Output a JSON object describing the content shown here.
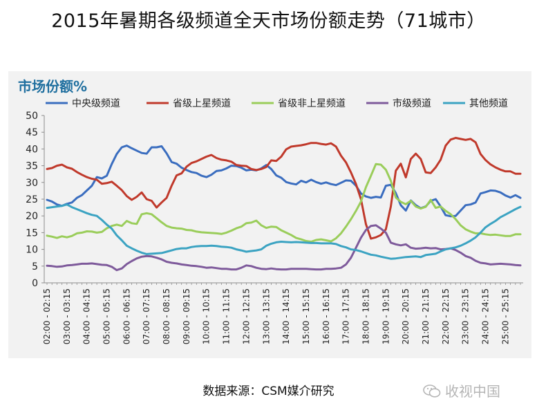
{
  "title": "2015年暑期各级频道全天市场份额走势（71城市）",
  "source": "数据来源：CSM媒介研究",
  "watermark": "收视中国",
  "chart_data": {
    "type": "line",
    "ylabel": "市场份额%",
    "ylim": [
      0,
      50
    ],
    "yticks": [
      0,
      5,
      10,
      15,
      20,
      25,
      30,
      35,
      40,
      45,
      50
    ],
    "legend_position": "top",
    "grid": false,
    "x": [
      "02:00 - 02:15",
      "02:15 - 02:30",
      "02:30 - 02:45",
      "02:45 - 03:00",
      "03:00 - 03:15",
      "03:15 - 03:30",
      "03:30 - 03:45",
      "03:45 - 04:00",
      "04:00 - 04:15",
      "04:15 - 04:30",
      "04:30 - 04:45",
      "04:45 - 05:00",
      "05:00 - 05:15",
      "05:15 - 05:30",
      "05:30 - 05:45",
      "05:45 - 06:00",
      "06:00 - 06:15",
      "06:15 - 06:30",
      "06:30 - 06:45",
      "06:45 - 07:00",
      "07:00 - 07:15",
      "07:15 - 07:30",
      "07:30 - 07:45",
      "07:45 - 08:00",
      "08:00 - 08:15",
      "08:15 - 08:30",
      "08:30 - 08:45",
      "08:45 - 09:00",
      "09:00 - 09:15",
      "09:15 - 09:30",
      "09:30 - 09:45",
      "09:45 - 10:00",
      "10:00 - 10:15",
      "10:15 - 10:30",
      "10:30 - 10:45",
      "10:45 - 11:00",
      "11:00 - 11:15",
      "11:15 - 11:30",
      "11:30 - 11:45",
      "11:45 - 12:00",
      "12:00 - 12:15",
      "12:15 - 12:30",
      "12:30 - 12:45",
      "12:45 - 13:00",
      "13:00 - 13:15",
      "13:15 - 13:30",
      "13:30 - 13:45",
      "13:45 - 14:00",
      "14:00 - 14:15",
      "14:15 - 14:30",
      "14:30 - 14:45",
      "14:45 - 15:00",
      "15:00 - 15:15",
      "15:15 - 15:30",
      "15:30 - 15:45",
      "15:45 - 16:00",
      "16:00 - 16:15",
      "16:15 - 16:30",
      "16:30 - 16:45",
      "16:45 - 17:00",
      "17:00 - 17:15",
      "17:15 - 17:30",
      "17:30 - 17:45",
      "17:45 - 18:00",
      "18:00 - 18:15",
      "18:15 - 18:30",
      "18:30 - 18:45",
      "18:45 - 19:00",
      "19:00 - 19:15",
      "19:15 - 19:30",
      "19:30 - 19:45",
      "19:45 - 20:00",
      "20:00 - 20:15",
      "20:15 - 20:30",
      "20:30 - 20:45",
      "20:45 - 21:00",
      "21:00 - 21:15",
      "21:15 - 21:30",
      "21:30 - 21:45",
      "21:45 - 22:00",
      "22:00 - 22:15",
      "22:15 - 22:30",
      "22:30 - 22:45",
      "22:45 - 23:00",
      "23:00 - 23:15",
      "23:15 - 23:30",
      "23:30 - 23:45",
      "23:45 - 24:00",
      "24:00 - 24:15",
      "24:15 - 24:30",
      "24:30 - 24:45",
      "24:45 - 25:00",
      "25:00 - 25:15",
      "25:15 - 25:30",
      "25:30 - 25:45",
      "25:45 - 26:00"
    ],
    "tick_labels": [
      "02:00 - 02:15",
      "03:00 - 03:15",
      "04:00 - 04:15",
      "05:00 - 05:15",
      "06:00 - 06:15",
      "07:00 - 07:15",
      "08:00 - 08:15",
      "09:00 - 09:15",
      "10:00 - 10:15",
      "11:00 - 11:15",
      "12:00 - 12:15",
      "13:00 - 13:15",
      "14:00 - 14:15",
      "15:00 - 15:15",
      "16:00 - 16:15",
      "17:00 - 17:15",
      "18:00 - 18:15",
      "19:00 - 19:15",
      "20:00 - 20:15",
      "21:00 - 21:15",
      "22:00 - 22:15",
      "23:00 - 23:15",
      "24:00 - 24:15",
      "25:00 - 25:15"
    ],
    "series": [
      {
        "name": "中央级频道",
        "color": "#3a6dbf",
        "values": [
          24.8,
          24.3,
          23.4,
          23.0,
          23.6,
          24.0,
          25.4,
          26.2,
          27.6,
          29.0,
          31.6,
          31.2,
          32.0,
          35.5,
          38.5,
          40.5,
          41.0,
          40.2,
          39.5,
          38.8,
          38.6,
          40.5,
          40.5,
          40.8,
          38.7,
          36.1,
          35.6,
          34.4,
          33.7,
          33.1,
          32.8,
          32.0,
          31.6,
          32.3,
          33.4,
          33.6,
          34.2,
          35.0,
          34.9,
          34.4,
          33.6,
          33.8,
          33.6,
          34.2,
          35.2,
          34.0,
          32.1,
          31.4,
          30.1,
          29.7,
          29.4,
          30.5,
          30.0,
          30.8,
          30.1,
          29.6,
          30.0,
          29.5,
          29.2,
          29.9,
          30.6,
          30.5,
          29.0,
          26.7,
          25.8,
          25.4,
          25.7,
          25.5,
          29.0,
          29.3,
          26.8,
          23.2,
          21.6,
          24.6,
          23.2,
          22.3,
          22.8,
          24.5,
          25.0,
          22.8,
          20.2,
          19.9,
          20.0,
          21.6,
          23.2,
          23.4,
          24.0,
          26.7,
          27.1,
          27.6,
          27.5,
          27.0,
          26.1,
          25.5,
          26.2,
          25.4
        ]
      },
      {
        "name": "省级上星频道",
        "color": "#c0392b",
        "values": [
          34.0,
          34.3,
          35.0,
          35.3,
          34.5,
          34.1,
          33.1,
          32.3,
          31.6,
          31.1,
          30.8,
          29.6,
          29.8,
          30.2,
          29.0,
          27.7,
          25.9,
          24.8,
          25.7,
          27.0,
          25.0,
          24.5,
          22.5,
          24.0,
          25.4,
          29.0,
          32.1,
          32.7,
          34.7,
          35.8,
          36.3,
          37.0,
          37.7,
          38.2,
          37.3,
          36.8,
          36.6,
          36.2,
          35.2,
          35.0,
          34.9,
          34.0,
          33.7,
          34.0,
          34.6,
          36.6,
          36.4,
          37.7,
          39.9,
          40.7,
          40.9,
          41.1,
          41.4,
          41.8,
          41.8,
          41.5,
          41.3,
          41.7,
          40.7,
          38.0,
          36.0,
          33.0,
          29.5,
          25.0,
          17.5,
          13.2,
          13.6,
          14.3,
          16.0,
          22.8,
          33.5,
          35.6,
          31.5,
          37.0,
          38.6,
          37.0,
          33.0,
          32.8,
          34.5,
          36.8,
          41.0,
          42.8,
          43.3,
          43.0,
          42.7,
          43.0,
          42.0,
          38.5,
          36.7,
          35.4,
          34.5,
          33.8,
          33.3,
          33.3,
          32.6,
          32.6
        ]
      },
      {
        "name": "省级非上星频道",
        "color": "#9acd5a",
        "values": [
          14.1,
          13.8,
          13.4,
          13.9,
          13.6,
          14.0,
          14.8,
          15.0,
          15.4,
          15.3,
          15.0,
          15.2,
          16.3,
          17.0,
          17.4,
          17.0,
          18.5,
          17.8,
          17.6,
          20.5,
          20.8,
          20.5,
          19.3,
          18.1,
          17.0,
          16.5,
          16.3,
          16.2,
          15.8,
          15.7,
          15.3,
          15.1,
          15.0,
          14.9,
          14.8,
          14.6,
          15.0,
          15.6,
          16.3,
          16.8,
          17.8,
          18.0,
          18.6,
          17.2,
          16.4,
          16.8,
          16.7,
          15.7,
          15.0,
          14.3,
          13.4,
          13.0,
          12.5,
          12.3,
          12.8,
          13.0,
          12.7,
          12.4,
          13.3,
          14.8,
          16.8,
          19.0,
          21.5,
          24.3,
          28.6,
          32.0,
          35.5,
          35.3,
          33.8,
          30.5,
          25.5,
          24.2,
          23.5,
          24.5,
          22.8,
          22.2,
          22.7,
          24.8,
          22.4,
          22.8,
          21.5,
          20.5,
          19.0,
          17.2,
          16.0,
          15.3,
          14.8,
          14.8,
          14.5,
          14.3,
          14.4,
          14.2,
          14.0,
          14.0,
          14.5,
          14.5
        ]
      },
      {
        "name": "市级频道",
        "color": "#7e5a9b",
        "values": [
          5.1,
          5.0,
          4.8,
          4.9,
          5.2,
          5.3,
          5.5,
          5.7,
          5.7,
          5.8,
          5.6,
          5.4,
          5.3,
          4.8,
          3.8,
          4.3,
          5.6,
          6.5,
          7.3,
          7.8,
          8.0,
          7.9,
          7.5,
          7.0,
          6.3,
          6.0,
          5.8,
          5.5,
          5.3,
          5.1,
          5.0,
          4.8,
          4.5,
          4.6,
          4.4,
          4.2,
          4.2,
          4.0,
          4.0,
          4.5,
          5.2,
          5.0,
          4.5,
          4.2,
          4.1,
          4.3,
          4.1,
          4.0,
          4.0,
          4.2,
          4.2,
          4.2,
          4.2,
          4.1,
          4.0,
          4.0,
          4.2,
          4.2,
          4.3,
          4.5,
          5.5,
          7.5,
          10.5,
          13.5,
          15.8,
          17.0,
          17.2,
          16.2,
          15.0,
          12.0,
          11.5,
          11.2,
          11.5,
          10.5,
          10.2,
          10.3,
          10.5,
          10.3,
          10.4,
          10.0,
          10.1,
          10.3,
          9.8,
          9.0,
          8.0,
          7.5,
          6.6,
          6.0,
          5.8,
          5.5,
          5.6,
          5.7,
          5.6,
          5.5,
          5.3,
          5.2
        ]
      },
      {
        "name": "其他频道",
        "color": "#3ba3c2",
        "values": [
          22.4,
          22.6,
          22.8,
          23.0,
          23.4,
          22.6,
          22.0,
          21.4,
          20.8,
          20.3,
          20.0,
          18.8,
          17.4,
          16.2,
          14.2,
          12.7,
          11.1,
          10.3,
          9.6,
          9.0,
          8.6,
          8.7,
          8.8,
          8.9,
          9.3,
          9.7,
          10.1,
          10.3,
          10.3,
          10.7,
          10.9,
          11.0,
          11.0,
          11.1,
          11.0,
          10.8,
          10.7,
          10.5,
          10.0,
          9.7,
          9.3,
          9.5,
          9.7,
          10.0,
          11.1,
          11.7,
          12.1,
          12.3,
          12.2,
          12.1,
          12.2,
          12.1,
          12.0,
          11.9,
          11.9,
          11.8,
          11.8,
          11.8,
          11.6,
          11.0,
          10.6,
          10.0,
          9.8,
          9.4,
          8.9,
          8.4,
          8.2,
          7.8,
          7.5,
          7.2,
          7.3,
          7.5,
          7.7,
          7.8,
          7.9,
          7.7,
          8.3,
          8.5,
          8.7,
          9.4,
          10.0,
          10.3,
          10.6,
          11.1,
          11.8,
          12.6,
          13.6,
          15.0,
          16.6,
          17.6,
          18.5,
          19.6,
          20.4,
          21.2,
          22.0,
          22.7
        ]
      }
    ]
  }
}
